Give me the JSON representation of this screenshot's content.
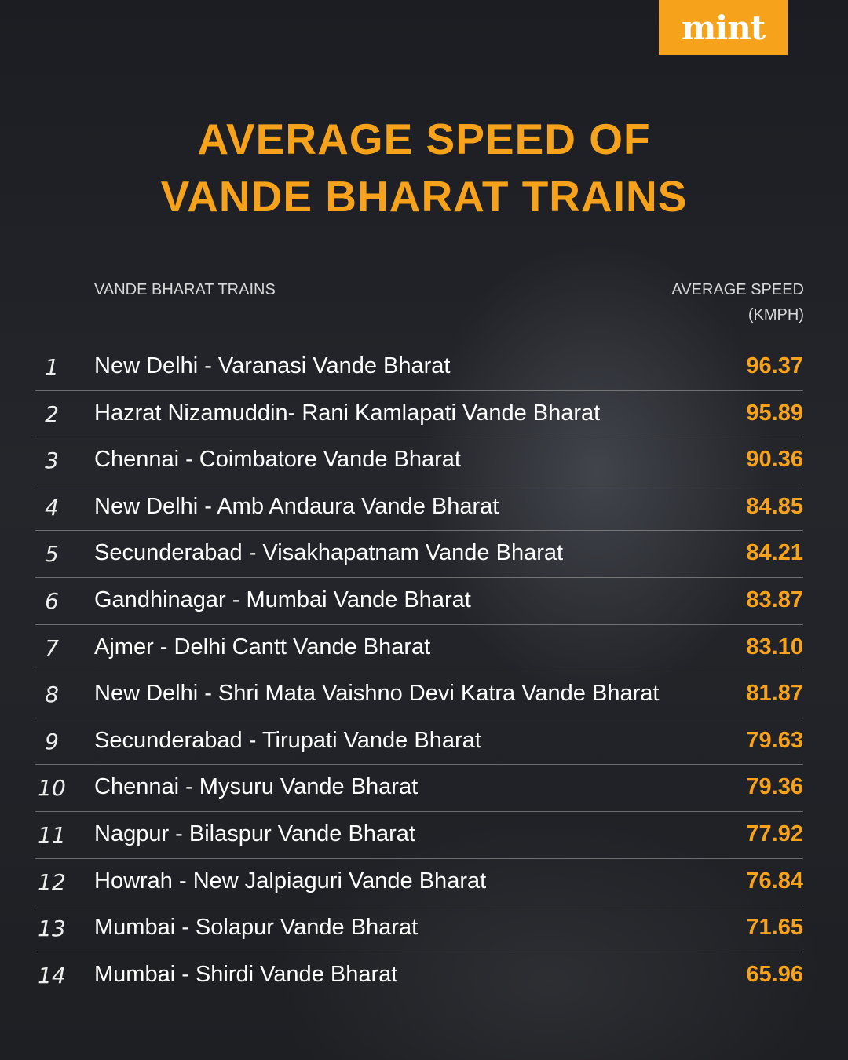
{
  "logo": "mint",
  "title": [
    "AVERAGE SPEED OF",
    "VANDE BHARAT TRAINS"
  ],
  "table": {
    "header": [
      "VANDE BHARAT TRAINS",
      "AVERAGE SPEED (KMPH)"
    ],
    "rows": [
      [
        "1",
        "New Delhi - Varanasi Vande Bharat",
        "96.37"
      ],
      [
        "2",
        "Hazrat Nizamuddin- Rani Kamlapati Vande Bharat",
        "95.89"
      ],
      [
        "3",
        "Chennai - Coimbatore Vande Bharat",
        "90.36"
      ],
      [
        "4",
        "New Delhi - Amb Andaura Vande Bharat",
        "84.85"
      ],
      [
        "5",
        "Secunderabad - Visakhapatnam Vande Bharat",
        "84.21"
      ],
      [
        "6",
        "Gandhinagar - Mumbai Vande Bharat",
        "83.87"
      ],
      [
        "7",
        "Ajmer - Delhi Cantt Vande Bharat",
        "83.10"
      ],
      [
        "8",
        "New Delhi - Shri Mata Vaishno Devi Katra Vande Bharat",
        "81.87"
      ],
      [
        "9",
        "Secunderabad - Tirupati Vande Bharat",
        "79.63"
      ],
      [
        "10",
        "Chennai - Mysuru Vande Bharat",
        "79.36"
      ],
      [
        "11",
        "Nagpur - Bilaspur Vande Bharat",
        "77.92"
      ],
      [
        "12",
        "Howrah - New Jalpiaguri Vande Bharat",
        "76.84"
      ],
      [
        "13",
        "Mumbai - Solapur Vande Bharat",
        "71.65"
      ],
      [
        "14",
        "Mumbai - Shirdi Vande Bharat",
        "65.96"
      ]
    ]
  }
}
